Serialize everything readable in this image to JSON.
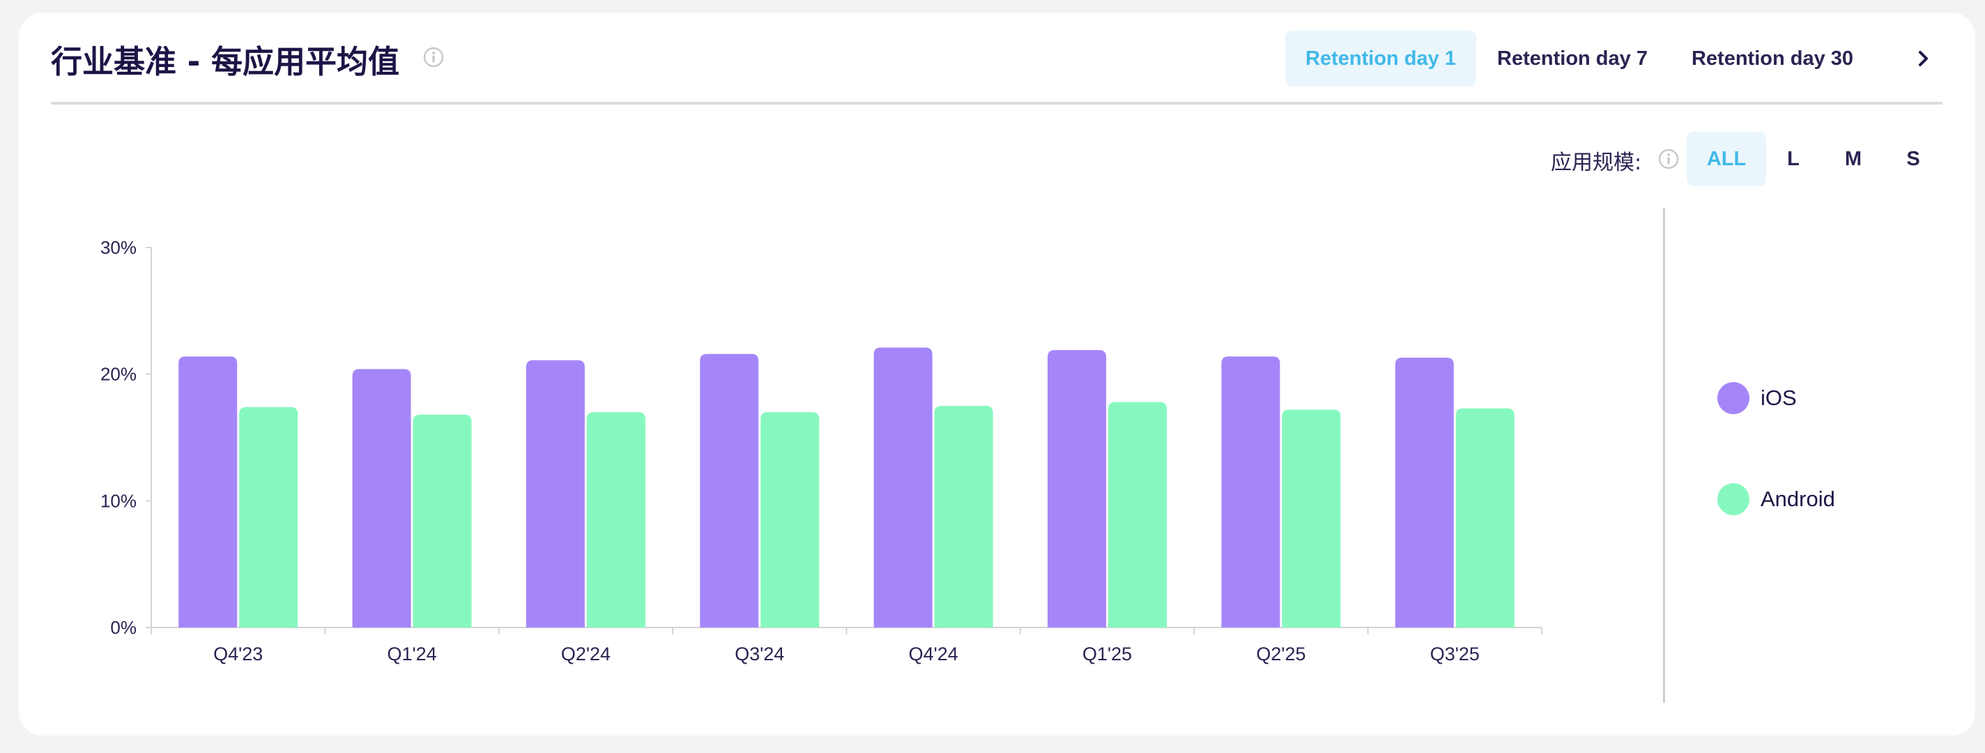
{
  "header": {
    "title": "行业基准 - 每应用平均值",
    "tabs": [
      {
        "label": "Retention day 1",
        "active": true
      },
      {
        "label": "Retention day 7",
        "active": false
      },
      {
        "label": "Retention day 30",
        "active": false
      }
    ],
    "next_icon": "chevron-right-icon"
  },
  "filters": {
    "app_size_label": "应用规模:",
    "sizes": [
      {
        "label": "ALL",
        "active": true
      },
      {
        "label": "L",
        "active": false
      },
      {
        "label": "M",
        "active": false
      },
      {
        "label": "S",
        "active": false
      }
    ]
  },
  "colors": {
    "ios": "#a586f8",
    "android": "#86f8bf",
    "accent": "#40b9e8"
  },
  "chart_data": {
    "type": "bar",
    "categories": [
      "Q4'23",
      "Q1'24",
      "Q2'24",
      "Q3'24",
      "Q4'24",
      "Q1'25",
      "Q2'25",
      "Q3'25"
    ],
    "series": [
      {
        "name": "iOS",
        "values": [
          21.4,
          20.4,
          21.1,
          21.6,
          22.1,
          21.9,
          21.4,
          21.3
        ]
      },
      {
        "name": "Android",
        "values": [
          17.4,
          16.8,
          17.0,
          17.0,
          17.5,
          17.8,
          17.2,
          17.3
        ]
      }
    ],
    "y_ticks": [
      "0%",
      "10%",
      "20%",
      "30%"
    ],
    "ylim": [
      0,
      30
    ],
    "legend_position": "right"
  }
}
